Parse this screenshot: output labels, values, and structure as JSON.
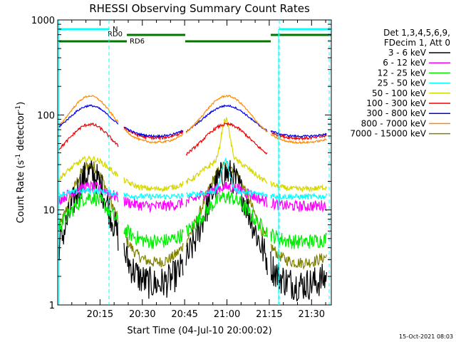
{
  "chart_data": {
    "type": "line",
    "title": "RHESSI Observing Summary Count Rates",
    "xlabel": "Start Time (04-Jul-10 20:00:02)",
    "ylabel_main": "Count Rate (s",
    "ylabel_sup1": "-1",
    "ylabel_mid": " detector",
    "ylabel_sup2": "-1",
    "ylabel_end": ")",
    "yscale": "log",
    "ylim": [
      1,
      1000
    ],
    "xlim_minutes": [
      0,
      97
    ],
    "x_ticks": [
      {
        "minute": 15,
        "label": "20:15"
      },
      {
        "minute": 30,
        "label": "20:30"
      },
      {
        "minute": 45,
        "label": "20:45"
      },
      {
        "minute": 60,
        "label": "21:00"
      },
      {
        "minute": 75,
        "label": "21:15"
      },
      {
        "minute": 90,
        "label": "21:30"
      }
    ],
    "y_ticks": [
      {
        "value": 1,
        "label": "1"
      },
      {
        "value": 10,
        "label": "10"
      },
      {
        "value": 100,
        "label": "100"
      },
      {
        "value": 1000,
        "label": "1000"
      }
    ],
    "grid": false,
    "legend": {
      "placement": "right",
      "header": [
        "Det 1,3,4,5,6,9,",
        "FDecim 1, Att 0"
      ]
    },
    "series": [
      {
        "name": "3 - 6 keV",
        "color": "#000000"
      },
      {
        "name": "6 - 12 keV",
        "color": "#ff00ff"
      },
      {
        "name": "12 - 25 keV",
        "color": "#00ee00"
      },
      {
        "name": "25 - 50 keV",
        "color": "#00ffff"
      },
      {
        "name": "50 - 100 keV",
        "color": "#d7d700"
      },
      {
        "name": "100 - 300 keV",
        "color": "#ee0000"
      },
      {
        "name": "300 - 800 keV",
        "color": "#0000ee"
      },
      {
        "name": "800 - 7000 keV",
        "color": "#ff8c00"
      },
      {
        "name": "7000 - 15000 keV",
        "color": "#808000"
      }
    ],
    "flags": [
      {
        "label": "N",
        "color": "#00ffff"
      },
      {
        "label": "RD0",
        "color": "#007700"
      },
      {
        "label": "RD6",
        "color": "#007700"
      }
    ],
    "footer": "15-Oct-2021 08:03"
  }
}
